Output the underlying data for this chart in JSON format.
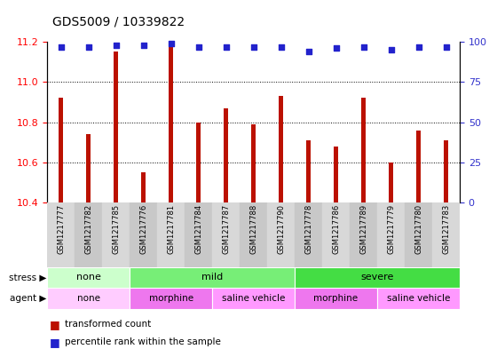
{
  "title": "GDS5009 / 10339822",
  "samples": [
    "GSM1217777",
    "GSM1217782",
    "GSM1217785",
    "GSM1217776",
    "GSM1217781",
    "GSM1217784",
    "GSM1217787",
    "GSM1217788",
    "GSM1217790",
    "GSM1217778",
    "GSM1217786",
    "GSM1217789",
    "GSM1217779",
    "GSM1217780",
    "GSM1217783"
  ],
  "transformed_counts": [
    10.92,
    10.74,
    11.15,
    10.55,
    11.2,
    10.8,
    10.87,
    10.79,
    10.93,
    10.71,
    10.68,
    10.92,
    10.6,
    10.76,
    10.71
  ],
  "percentile_ranks": [
    97,
    97,
    98,
    98,
    99,
    97,
    97,
    97,
    97,
    94,
    96,
    97,
    95,
    97,
    97
  ],
  "ylim_left": [
    10.4,
    11.2
  ],
  "ylim_right": [
    0,
    100
  ],
  "yticks_left": [
    10.4,
    10.6,
    10.8,
    11.0,
    11.2
  ],
  "yticks_right": [
    0,
    25,
    50,
    75,
    100
  ],
  "bar_color": "#bb1100",
  "dot_color": "#2222cc",
  "stress_groups": [
    {
      "label": "none",
      "start": 0,
      "end": 3,
      "color": "#ccffcc"
    },
    {
      "label": "mild",
      "start": 3,
      "end": 9,
      "color": "#77ee77"
    },
    {
      "label": "severe",
      "start": 9,
      "end": 15,
      "color": "#44dd44"
    }
  ],
  "agent_groups": [
    {
      "label": "none",
      "start": 0,
      "end": 3,
      "color": "#ffccff"
    },
    {
      "label": "morphine",
      "start": 3,
      "end": 6,
      "color": "#ee77ee"
    },
    {
      "label": "saline vehicle",
      "start": 6,
      "end": 9,
      "color": "#ff99ff"
    },
    {
      "label": "morphine",
      "start": 9,
      "end": 12,
      "color": "#ee77ee"
    },
    {
      "label": "saline vehicle",
      "start": 12,
      "end": 15,
      "color": "#ff99ff"
    }
  ]
}
